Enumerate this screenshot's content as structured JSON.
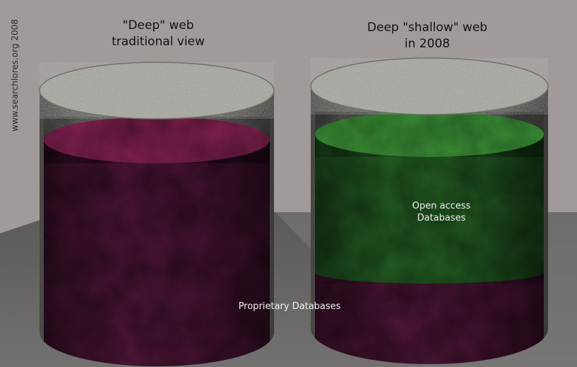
{
  "left_cylinder": {
    "title_line1": "\"Deep\" web",
    "title_line2": "traditional view"
  },
  "right_cylinder": {
    "title_line1": "Deep \"shallow\" web",
    "title_line2": "in 2008",
    "open_access_line1": "Open access",
    "open_access_line2": "Databases"
  },
  "proprietary_label": "Proprietary Databases",
  "watermark": "www.searchlores.org 2008",
  "colors": {
    "background": "#a09b99",
    "proprietary": "#6e1f4a",
    "open_access": "#2f7a2c",
    "container": "#b8b8b0"
  }
}
